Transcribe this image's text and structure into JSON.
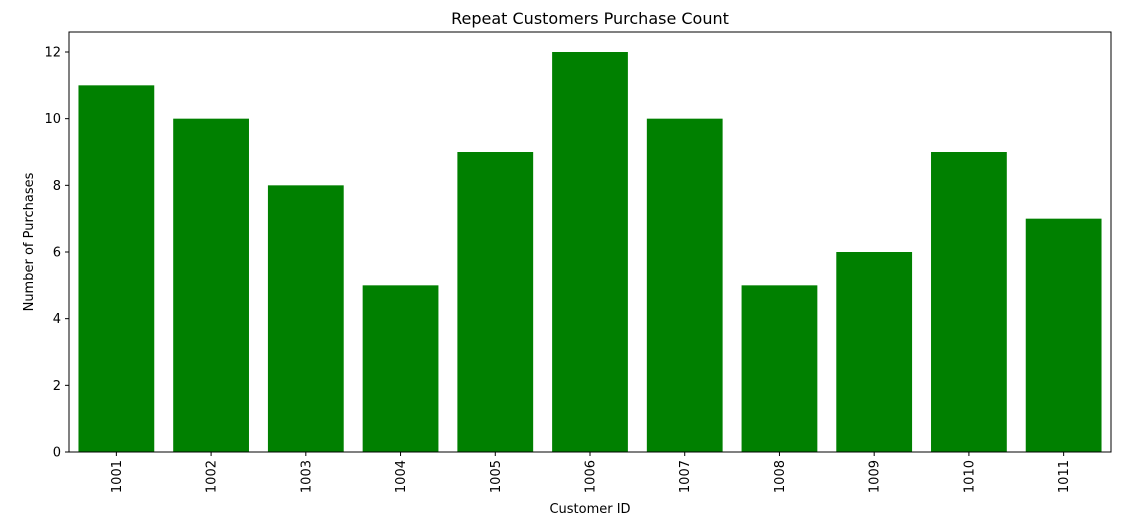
{
  "chart_data": {
    "type": "bar",
    "title": "Repeat Customers Purchase Count",
    "xlabel": "Customer ID",
    "ylabel": "Number of Purchases",
    "categories": [
      "1001",
      "1002",
      "1003",
      "1004",
      "1005",
      "1006",
      "1007",
      "1008",
      "1009",
      "1010",
      "1011"
    ],
    "values": [
      11,
      10,
      8,
      5,
      9,
      12,
      10,
      5,
      6,
      9,
      7
    ],
    "ylim": [
      0,
      12.6
    ],
    "yticks": [
      0,
      2,
      4,
      6,
      8,
      10,
      12
    ],
    "bar_color": "#008000",
    "grid": false,
    "x_tick_rotation": "vertical"
  }
}
